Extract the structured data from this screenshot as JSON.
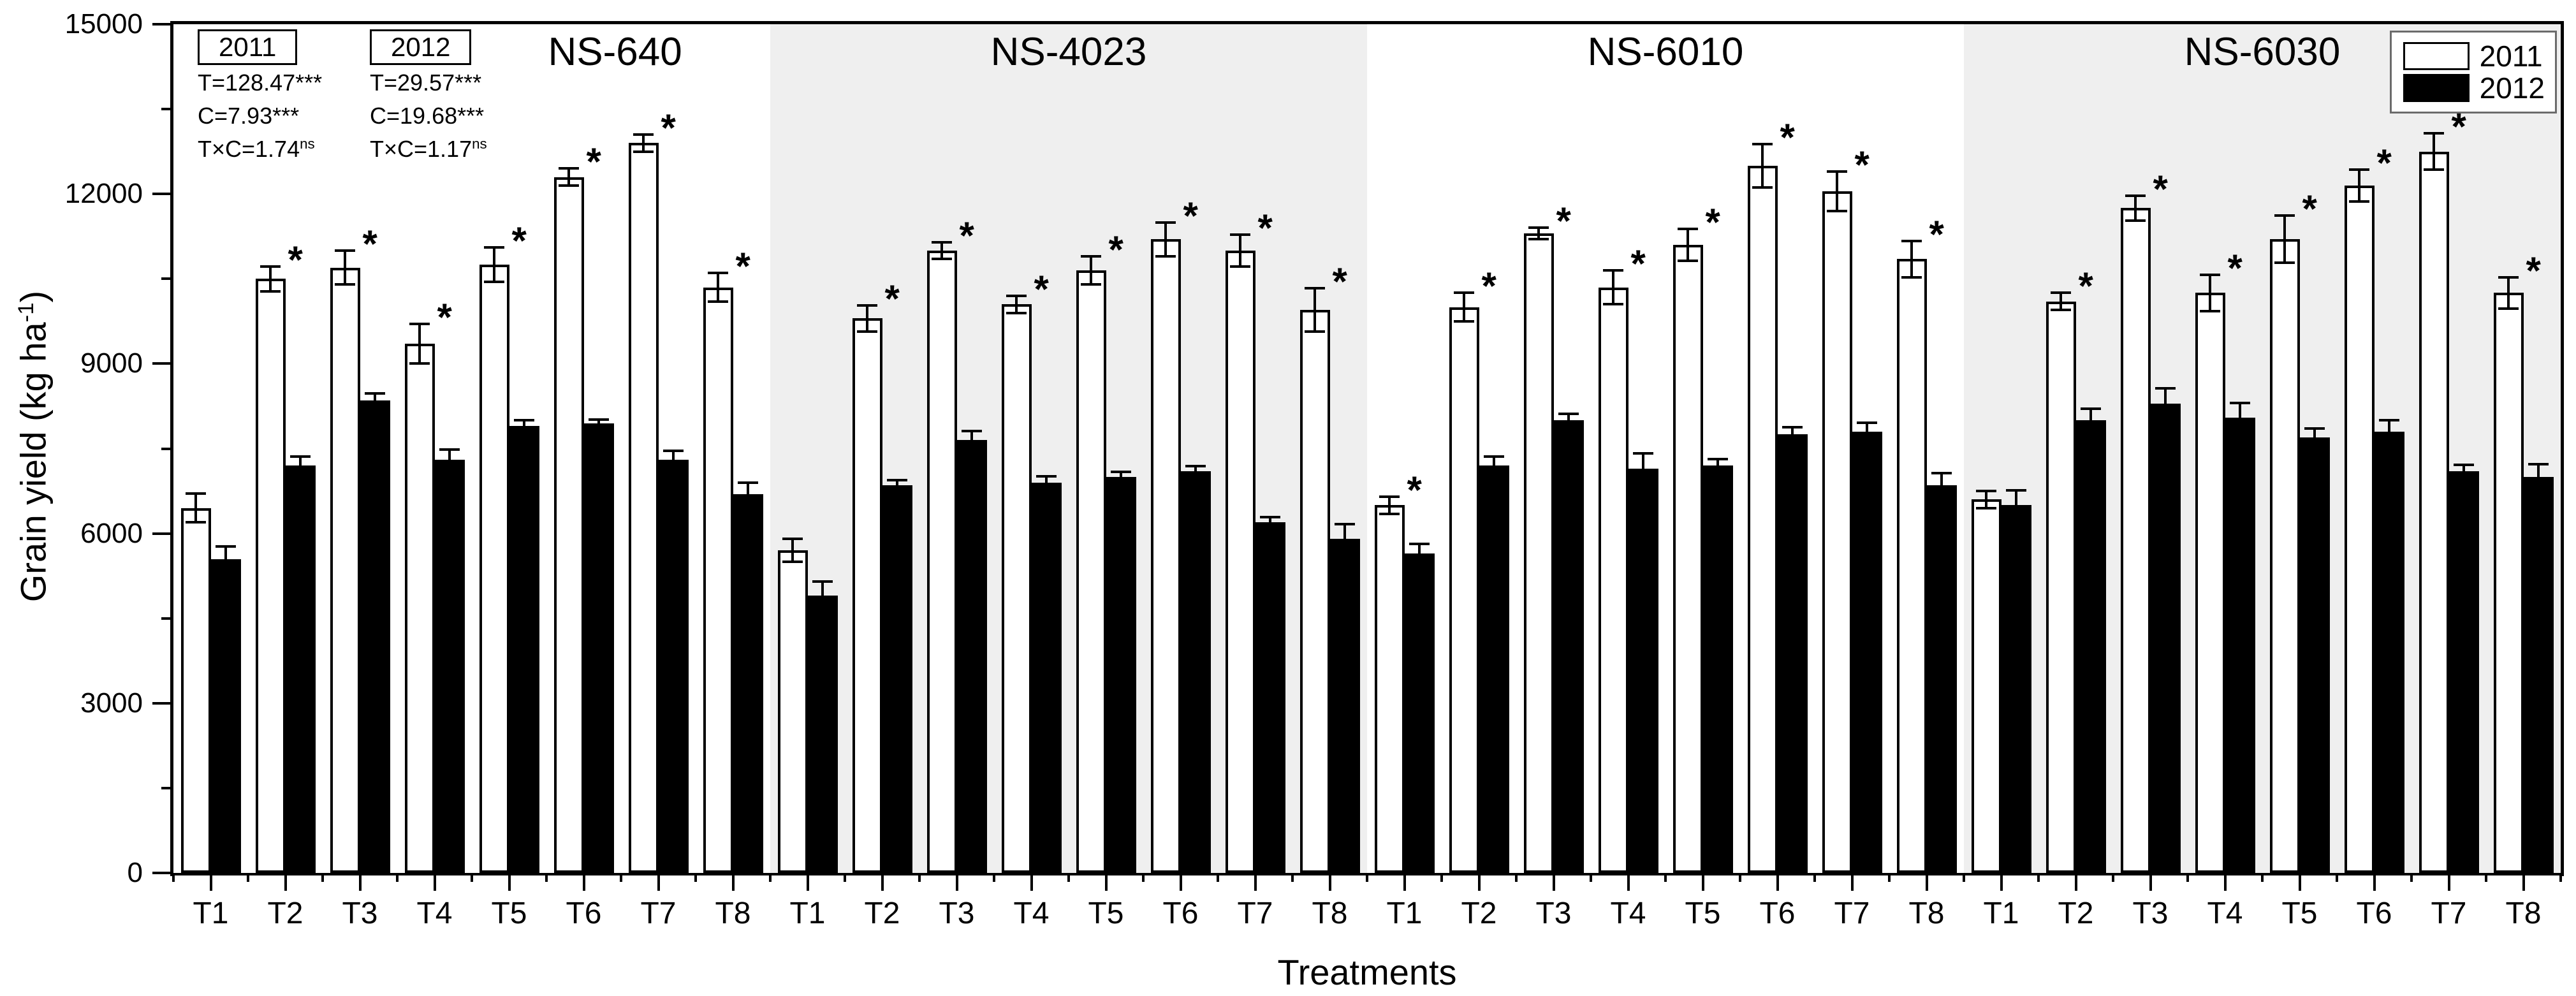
{
  "chart_data": {
    "type": "bar",
    "title": "",
    "xlabel": "Treatments",
    "ylabel": "Grain yield (kg ha^-1)",
    "ylim": [
      0,
      15000
    ],
    "yticks": [
      "0",
      "3000",
      "6000",
      "9000",
      "12000",
      "15000"
    ],
    "ytick_values": [
      0,
      3000,
      6000,
      9000,
      12000,
      15000
    ],
    "yminor_values": [
      1500,
      4500,
      7500,
      10500,
      13500
    ],
    "grid": "off",
    "legend_position": "top-right",
    "legend": [
      {
        "label": "2011",
        "fill": "#ffffff"
      },
      {
        "label": "2012",
        "fill": "#000000"
      }
    ],
    "significance_marker": "*",
    "categories": [
      "T1",
      "T2",
      "T3",
      "T4",
      "T5",
      "T6",
      "T7",
      "T8"
    ],
    "panels": [
      {
        "title": "NS-640",
        "background": "#ffffff",
        "series": [
          {
            "name": "2011",
            "fill": "#ffffff",
            "values": [
              6450,
              10500,
              10700,
              9350,
              10750,
              12300,
              12900,
              10350
            ],
            "errors": [
              250,
              220,
              300,
              350,
              300,
              150,
              150,
              250
            ],
            "significant": [
              false,
              true,
              true,
              true,
              true,
              true,
              true,
              true
            ]
          },
          {
            "name": "2012",
            "fill": "#000000",
            "values": [
              5550,
              7200,
              8350,
              7300,
              7900,
              7950,
              7300,
              6700
            ],
            "errors": [
              220,
              160,
              130,
              180,
              100,
              60,
              160,
              200
            ],
            "significant": [
              false,
              false,
              false,
              false,
              false,
              false,
              false,
              false
            ]
          }
        ]
      },
      {
        "title": "NS-4023",
        "background": "#efefef",
        "series": [
          {
            "name": "2011",
            "fill": "#ffffff",
            "values": [
              5700,
              9800,
              11000,
              10050,
              10650,
              11200,
              11000,
              9950
            ],
            "errors": [
              200,
              230,
              150,
              150,
              250,
              300,
              280,
              380
            ],
            "significant": [
              false,
              true,
              true,
              true,
              true,
              true,
              true,
              true
            ]
          },
          {
            "name": "2012",
            "fill": "#000000",
            "values": [
              4900,
              6850,
              7650,
              6900,
              7000,
              7100,
              6200,
              5900
            ],
            "errors": [
              250,
              90,
              160,
              110,
              90,
              90,
              90,
              260
            ],
            "significant": [
              false,
              false,
              false,
              false,
              false,
              false,
              false,
              false
            ]
          }
        ]
      },
      {
        "title": "NS-6010",
        "background": "#ffffff",
        "series": [
          {
            "name": "2011",
            "fill": "#ffffff",
            "values": [
              6500,
              10000,
              11300,
              10350,
              11100,
              12500,
              12050,
              10850
            ],
            "errors": [
              150,
              250,
              100,
              300,
              280,
              380,
              350,
              320
            ],
            "significant": [
              true,
              true,
              true,
              true,
              true,
              true,
              true,
              true
            ]
          },
          {
            "name": "2012",
            "fill": "#000000",
            "values": [
              5650,
              7200,
              8000,
              7150,
              7200,
              7750,
              7800,
              6850
            ],
            "errors": [
              160,
              160,
              110,
              260,
              110,
              130,
              160,
              220
            ],
            "significant": [
              false,
              false,
              false,
              false,
              false,
              false,
              false,
              false
            ]
          }
        ]
      },
      {
        "title": "NS-6030",
        "background": "#efefef",
        "series": [
          {
            "name": "2011",
            "fill": "#ffffff",
            "values": [
              6600,
              10100,
              11750,
              10250,
              11200,
              12150,
              12750,
              10250
            ],
            "errors": [
              150,
              150,
              220,
              320,
              420,
              280,
              320,
              280
            ],
            "significant": [
              false,
              true,
              true,
              true,
              true,
              true,
              true,
              true
            ]
          },
          {
            "name": "2012",
            "fill": "#000000",
            "values": [
              6500,
              8000,
              8300,
              8050,
              7700,
              7800,
              7100,
              7000
            ],
            "errors": [
              260,
              200,
              260,
              260,
              160,
              200,
              110,
              220
            ],
            "significant": [
              false,
              false,
              false,
              false,
              false,
              false,
              false,
              false
            ]
          }
        ]
      }
    ],
    "annotations": [
      {
        "box_label": "2011",
        "lines": [
          "T=128.47***",
          "C=7.93***",
          "T×C=1.74^ns"
        ]
      },
      {
        "box_label": "2012",
        "lines": [
          "T=29.57***",
          "C=19.68***",
          "T×C=1.17^ns"
        ]
      }
    ]
  }
}
